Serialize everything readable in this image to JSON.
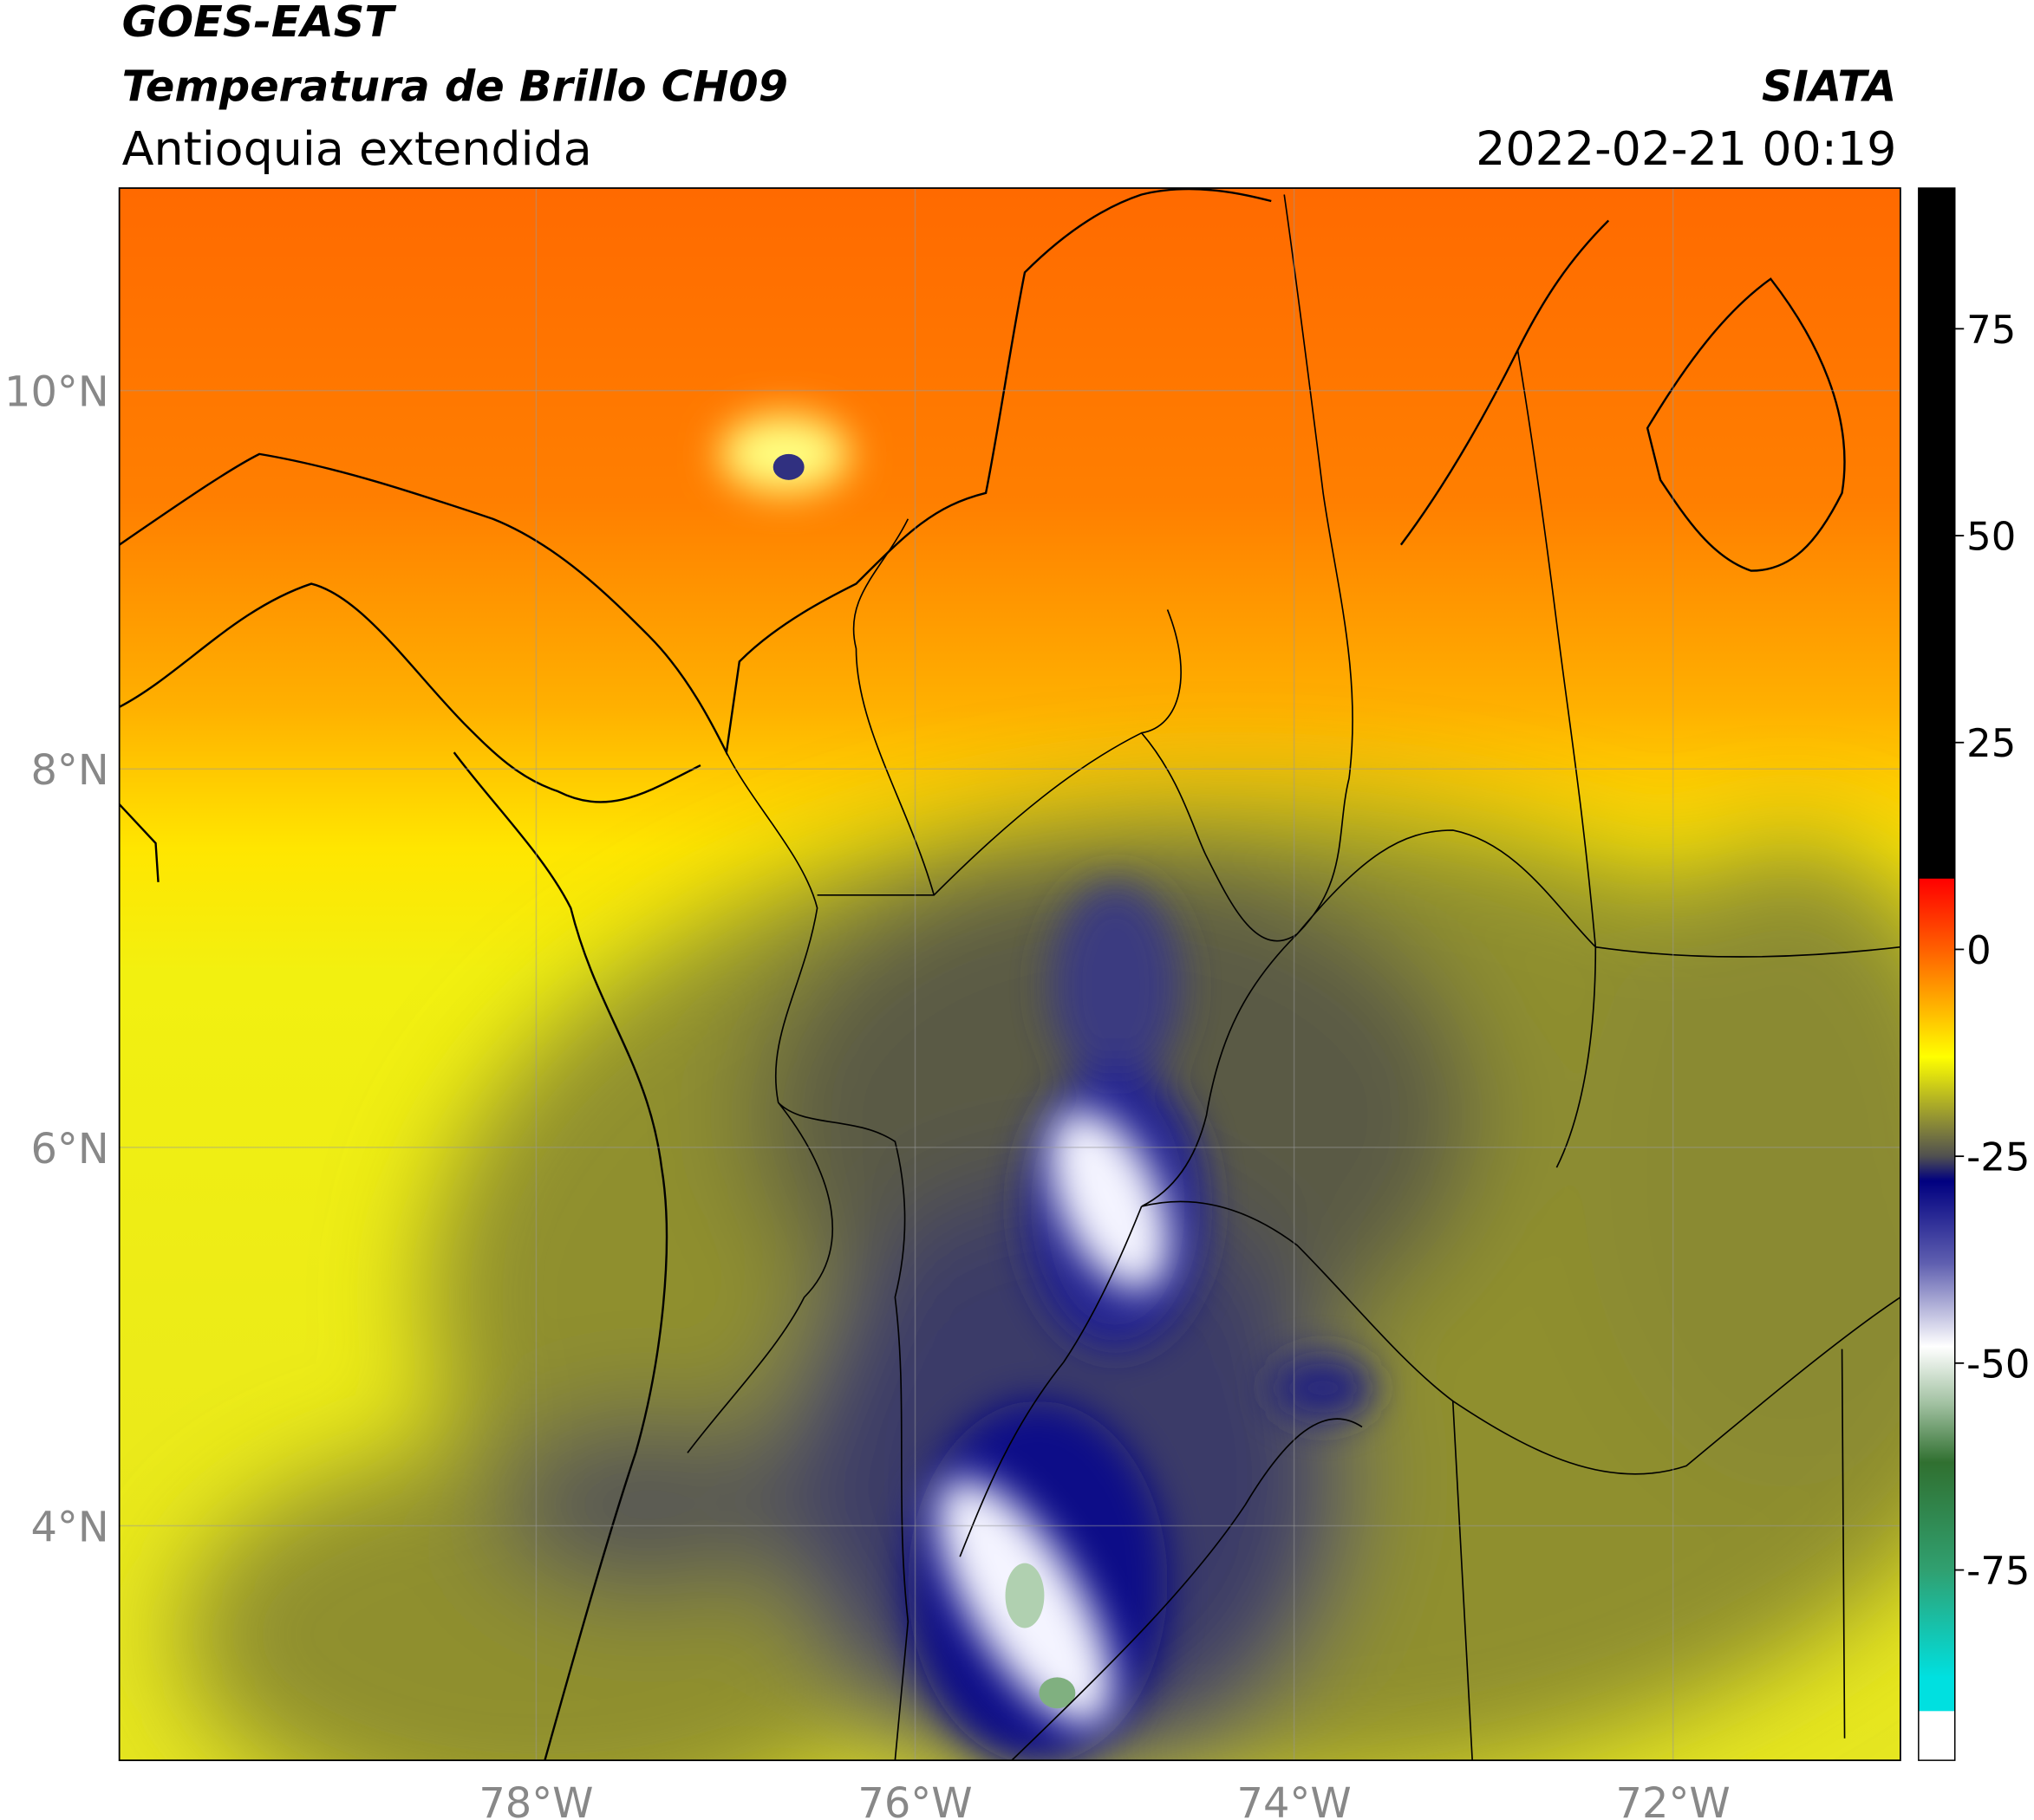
{
  "header": {
    "title": "GOES-EAST",
    "subtitle": "Temperatura de Brillo CH09",
    "region": "Antioquia extendida",
    "agency": "SIATA",
    "datetime": "2022-02-21 00:19"
  },
  "map": {
    "xlim": [
      -80.2,
      -70.8
    ],
    "ylim": [
      2.76,
      11.07
    ],
    "xticks": [
      {
        "value": -78,
        "label": "78°W"
      },
      {
        "value": -76,
        "label": "76°W"
      },
      {
        "value": -74,
        "label": "74°W"
      },
      {
        "value": -72,
        "label": "72°W"
      }
    ],
    "yticks": [
      {
        "value": 4,
        "label": "4°N"
      },
      {
        "value": 6,
        "label": "6°N"
      },
      {
        "value": 8,
        "label": "8°N"
      },
      {
        "value": 10,
        "label": "10°N"
      }
    ],
    "grid": true
  },
  "colorbar": {
    "lim": [
      -98,
      92
    ],
    "ticks": [
      75,
      50,
      25,
      0,
      -25,
      -50,
      -75
    ],
    "colormap": [
      {
        "value": 92,
        "color": "#000000"
      },
      {
        "value": 8.6,
        "color": "#000000"
      },
      {
        "value": 8.5,
        "color": "#ff0000"
      },
      {
        "value": 0,
        "color": "#ff6000"
      },
      {
        "value": -8,
        "color": "#ffc000"
      },
      {
        "value": -13,
        "color": "#ffff00"
      },
      {
        "value": -20,
        "color": "#999930"
      },
      {
        "value": -25,
        "color": "#505050"
      },
      {
        "value": -28,
        "color": "#000080"
      },
      {
        "value": -38,
        "color": "#6060b0"
      },
      {
        "value": -48,
        "color": "#ffffff"
      },
      {
        "value": -55,
        "color": "#a0c0a0"
      },
      {
        "value": -62,
        "color": "#307030"
      },
      {
        "value": -75,
        "color": "#30a070"
      },
      {
        "value": -88,
        "color": "#00e0e0"
      },
      {
        "value": -92,
        "color": "#00e0e0"
      },
      {
        "value": -92.1,
        "color": "#ffffff"
      },
      {
        "value": -98,
        "color": "#ffffff"
      }
    ]
  }
}
